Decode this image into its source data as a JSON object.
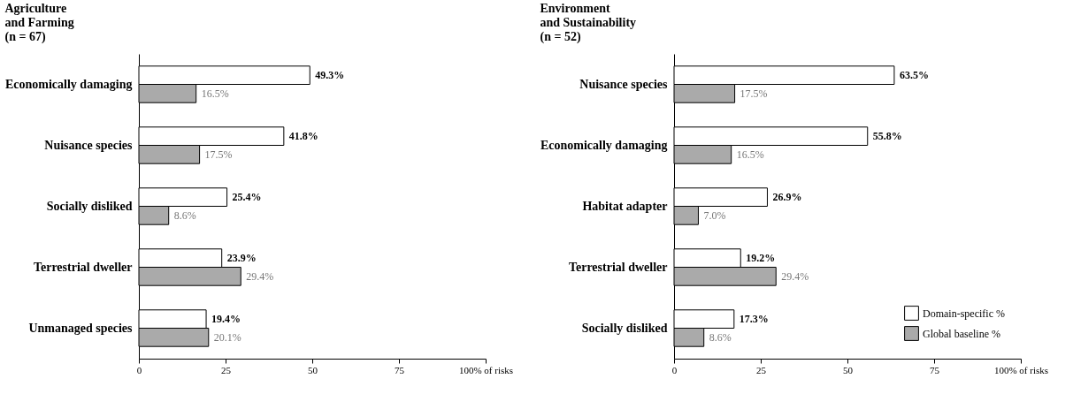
{
  "chart_data": [
    {
      "type": "bar",
      "orientation": "horizontal",
      "title": "Agriculture\nand Farming\n(n = 67)",
      "categories": [
        "Economically damaging",
        "Nuisance species",
        "Socially disliked",
        "Terrestrial dweller",
        "Unmanaged species"
      ],
      "series": [
        {
          "color": "#ffffff",
          "values": [
            49.3,
            41.8,
            25.4,
            23.9,
            19.4
          ],
          "value_labels": [
            "49.3%",
            "41.8%",
            "25.4%",
            "23.9%",
            "19.4%"
          ]
        },
        {
          "color": "#aaaaaa",
          "values": [
            16.5,
            17.5,
            8.6,
            29.4,
            20.1
          ],
          "value_labels": [
            "16.5%",
            "17.5%",
            "8.6%",
            "29.4%",
            "20.1%"
          ]
        }
      ],
      "xlim": [
        0,
        100
      ],
      "xticks": [
        0,
        25,
        50,
        75,
        {
          "value": 100,
          "label": "100% of risks"
        }
      ],
      "grid": false,
      "legend": false
    },
    {
      "type": "bar",
      "orientation": "horizontal",
      "title": "Environment\nand Sustainability\n(n = 52)",
      "categories": [
        "Nuisance species",
        "Economically damaging",
        "Habitat adapter",
        "Terrestrial dweller",
        "Socially disliked"
      ],
      "series": [
        {
          "name": "Domain-specific %",
          "color": "#ffffff",
          "values": [
            63.5,
            55.8,
            26.9,
            19.2,
            17.3
          ],
          "value_labels": [
            "63.5%",
            "55.8%",
            "26.9%",
            "19.2%",
            "17.3%"
          ]
        },
        {
          "name": "Global baseline %",
          "color": "#aaaaaa",
          "values": [
            17.5,
            16.5,
            7.0,
            29.4,
            8.6
          ],
          "value_labels": [
            "17.5%",
            "16.5%",
            "7.0%",
            "29.4%",
            "8.6%"
          ]
        }
      ],
      "xlim": [
        0,
        100
      ],
      "xticks": [
        0,
        25,
        50,
        75,
        {
          "value": 100,
          "label": "100% of risks"
        }
      ],
      "grid": false,
      "legend": "bottom right"
    }
  ]
}
